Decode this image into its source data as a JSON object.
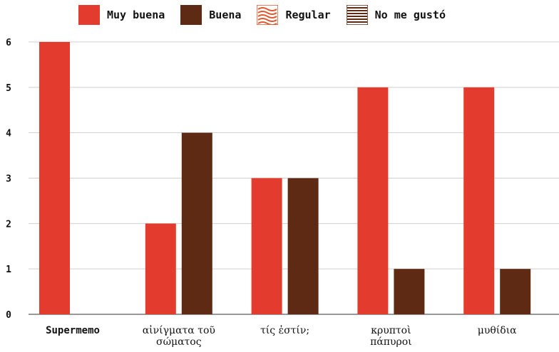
{
  "colors": {
    "muy_buena": "#e33b2e",
    "buena": "#5e2a14",
    "regular": "#e1592e",
    "no_me_gusto": "#5e2a14",
    "grid": "#cfcfcf",
    "axis": "#333333"
  },
  "legend": [
    {
      "label": "Muy buena",
      "pattern": "solid",
      "color": "#e33b2e"
    },
    {
      "label": "Buena",
      "pattern": "solid",
      "color": "#5e2a14"
    },
    {
      "label": "Regular",
      "pattern": "wave",
      "color": "#e1592e"
    },
    {
      "label": "No me gustó",
      "pattern": "stripes",
      "color": "#5e2a14"
    }
  ],
  "chart_data": {
    "type": "bar",
    "categories": [
      [
        "Supermemo"
      ],
      [
        "αἰνίγματα τοῦ",
        "σώματος"
      ],
      [
        "τίς ἐστίν;"
      ],
      [
        "κρυπτοὶ",
        "πάπυροι"
      ],
      [
        "μυθίδια"
      ]
    ],
    "series": [
      {
        "name": "Muy buena",
        "values": [
          6,
          2,
          3,
          5,
          5
        ]
      },
      {
        "name": "Buena",
        "values": [
          0,
          4,
          3,
          1,
          1
        ]
      },
      {
        "name": "Regular",
        "values": [
          0,
          0,
          0,
          0,
          0
        ]
      },
      {
        "name": "No me gustó",
        "values": [
          0,
          0,
          0,
          0,
          0
        ]
      }
    ],
    "ylim": [
      0,
      6
    ],
    "yticks": [
      "0",
      "1",
      "2",
      "3",
      "4",
      "5",
      "6"
    ],
    "grid": true,
    "legend_position": "top"
  }
}
